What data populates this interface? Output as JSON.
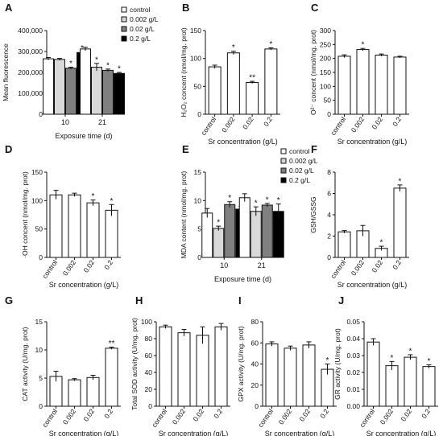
{
  "chart_data": [
    {
      "panel": "A",
      "type": "bar",
      "categories": [
        "10",
        "21"
      ],
      "xlabel": "Exposure time (d)",
      "ylabel": "Mean fluorescence",
      "ylim": [
        0,
        400000
      ],
      "yticks": [
        0,
        100000,
        200000,
        300000,
        400000
      ],
      "ytick_labels": [
        "0",
        "100,000",
        "200,000",
        "300,000",
        "400,000"
      ],
      "legend": "top-right",
      "series": [
        {
          "name": "control",
          "values": [
            265000,
            312000
          ],
          "err": [
            6000,
            8000
          ],
          "sig": [
            "",
            ""
          ]
        },
        {
          "name": "0.002 g/L",
          "values": [
            262000,
            225000
          ],
          "err": [
            5000,
            18000
          ],
          "sig": [
            "",
            "*"
          ]
        },
        {
          "name": "0.02 g/L",
          "values": [
            220000,
            210000
          ],
          "err": [
            5000,
            6000
          ],
          "sig": [
            "*",
            "*"
          ]
        },
        {
          "name": "0.2 g/L",
          "values": [
            295000,
            195000
          ],
          "err": [
            4000,
            5000
          ],
          "sig": [
            "*",
            "*"
          ]
        }
      ]
    },
    {
      "panel": "B",
      "type": "bar",
      "categories": [
        "control",
        "0.002",
        "0.02",
        "0.2"
      ],
      "values": [
        85,
        110,
        57,
        117
      ],
      "err": [
        3,
        3,
        2,
        2
      ],
      "sig": [
        "",
        "*",
        "**",
        "*"
      ],
      "xlabel": "Sr concentration (g/L)",
      "ylabel": "H₂O₂ concent (nmol/mg. prot)",
      "ylim": [
        0,
        150
      ],
      "yticks": [
        0,
        50,
        100,
        150
      ]
    },
    {
      "panel": "C",
      "type": "bar",
      "categories": [
        "control",
        "0.002",
        "0.02",
        "0.2"
      ],
      "values": [
        208,
        232,
        212,
        205
      ],
      "err": [
        5,
        4,
        4,
        3
      ],
      "sig": [
        "",
        "*",
        "",
        ""
      ],
      "xlabel": "Sr concentration (g/L)",
      "ylabel": "O²⁻ concent (nmol/mg. prot)",
      "ylim": [
        0,
        300
      ],
      "yticks": [
        0,
        50,
        100,
        150,
        200,
        250,
        300
      ]
    },
    {
      "panel": "D",
      "type": "bar",
      "categories": [
        "control",
        "0.002",
        "0.02",
        "0.2"
      ],
      "values": [
        110,
        110,
        96,
        83
      ],
      "err": [
        8,
        3,
        5,
        10
      ],
      "sig": [
        "",
        "",
        "*",
        "*"
      ],
      "xlabel": "Sr concentration (g/L)",
      "ylabel": "·OH concent (nmol/mg. prot)",
      "ylim": [
        0,
        150
      ],
      "yticks": [
        0,
        50,
        100,
        150
      ]
    },
    {
      "panel": "E",
      "type": "bar",
      "categories": [
        "10",
        "21"
      ],
      "xlabel": "Exposure time (d)",
      "ylabel": "MDA content (nmol/mg. prot)",
      "ylim": [
        0,
        15
      ],
      "yticks": [
        0,
        5,
        10,
        15
      ],
      "legend": "top-right",
      "series": [
        {
          "name": "control",
          "values": [
            7.8,
            10.5
          ],
          "err": [
            0.8,
            0.7
          ],
          "sig": [
            "",
            ""
          ]
        },
        {
          "name": "0.002 g/L",
          "values": [
            5.1,
            8.1
          ],
          "err": [
            0.4,
            0.8
          ],
          "sig": [
            "*",
            "*"
          ]
        },
        {
          "name": "0.02 g/L",
          "values": [
            9.3,
            9.2
          ],
          "err": [
            0.5,
            0.3
          ],
          "sig": [
            "*",
            "*"
          ]
        },
        {
          "name": "0.2 g/L",
          "values": [
            8.5,
            8.1
          ],
          "err": [
            0.5,
            1.3
          ],
          "sig": [
            "",
            "*"
          ]
        }
      ]
    },
    {
      "panel": "F",
      "type": "bar",
      "categories": [
        "control",
        "0.002",
        "0.02",
        "0.2"
      ],
      "values": [
        2.4,
        2.5,
        0.85,
        6.5
      ],
      "err": [
        0.12,
        0.5,
        0.2,
        0.3
      ],
      "sig": [
        "",
        "",
        "*",
        "*"
      ],
      "xlabel": "Sr concentration (g/L)",
      "ylabel": "GSH/GSSG",
      "ylim": [
        0,
        8
      ],
      "yticks": [
        0,
        2,
        4,
        6,
        8
      ]
    },
    {
      "panel": "G",
      "type": "bar",
      "categories": [
        "control",
        "0.002",
        "0.02",
        "0.2"
      ],
      "values": [
        5.3,
        4.7,
        5.1,
        10.3
      ],
      "err": [
        0.9,
        0.2,
        0.4,
        0.2
      ],
      "sig": [
        "",
        "",
        "",
        "**"
      ],
      "xlabel": "Sr concentration (g/L)",
      "ylabel": "CAT activity (U/mg. prot)",
      "ylim": [
        0,
        15
      ],
      "yticks": [
        0,
        5,
        10,
        15
      ]
    },
    {
      "panel": "H",
      "type": "bar",
      "categories": [
        "control",
        "0.002",
        "0.02",
        "0.2"
      ],
      "values": [
        94,
        87,
        84,
        94
      ],
      "err": [
        2,
        4,
        10,
        4
      ],
      "sig": [
        "",
        "",
        "",
        ""
      ],
      "xlabel": "Sr concentration (g/L)",
      "ylabel": "Total SOD activity (U/mg. prot)",
      "ylim": [
        0,
        100
      ],
      "yticks": [
        0,
        20,
        40,
        60,
        80,
        100
      ]
    },
    {
      "panel": "I",
      "type": "bar",
      "categories": [
        "control",
        "0.002",
        "0.02",
        "0.2"
      ],
      "values": [
        59,
        55,
        58,
        35
      ],
      "err": [
        2,
        2,
        3,
        5
      ],
      "sig": [
        "",
        "",
        "",
        "*"
      ],
      "xlabel": "Sr concentration (g/L)",
      "ylabel": "GPX activity (U/mg. prot)",
      "ylim": [
        0,
        80
      ],
      "yticks": [
        0,
        20,
        40,
        60,
        80
      ]
    },
    {
      "panel": "J",
      "type": "bar",
      "categories": [
        "control",
        "0.002",
        "0.02",
        "0.2"
      ],
      "values": [
        0.038,
        0.024,
        0.029,
        0.0235
      ],
      "err": [
        0.002,
        0.0025,
        0.0015,
        0.001
      ],
      "sig": [
        "",
        "*",
        "*",
        "*"
      ],
      "xlabel": "Sr concentration (g/L)",
      "ylabel": "GR activity (U/mg. prot)",
      "ylim": [
        0,
        0.05
      ],
      "yticks": [
        0,
        0.01,
        0.02,
        0.03,
        0.04,
        0.05
      ],
      "ytick_labels": [
        "0.00",
        "0.01",
        "0.02",
        "0.03",
        "0.04",
        "0.05"
      ]
    }
  ],
  "colors": {
    "control": "#ffffff",
    "0.002 g/L": "#d9d9d9",
    "0.02 g/L": "#808080",
    "0.2 g/L": "#000000",
    "single_bar": "#ffffff",
    "stroke": "#111111"
  }
}
